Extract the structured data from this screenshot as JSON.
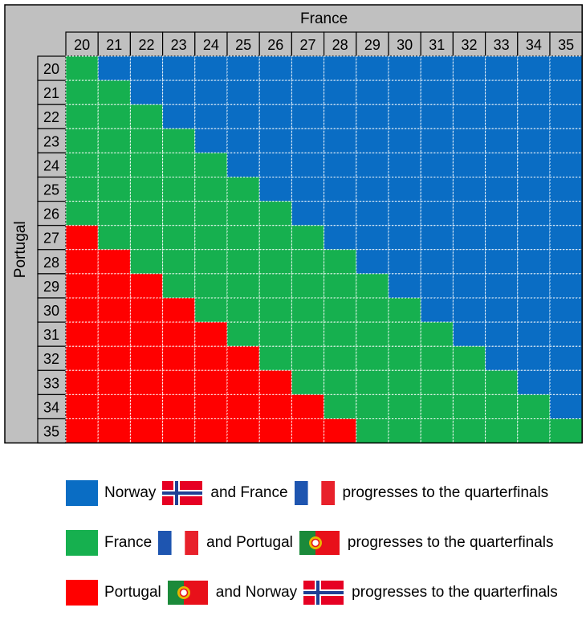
{
  "chart_data": {
    "type": "heatmap",
    "title": "",
    "xlabel": "France",
    "ylabel": "Portugal",
    "x_categories": [
      "20",
      "21",
      "22",
      "23",
      "24",
      "25",
      "26",
      "27",
      "28",
      "29",
      "30",
      "31",
      "32",
      "33",
      "34",
      "35"
    ],
    "y_categories": [
      "20",
      "21",
      "22",
      "23",
      "24",
      "25",
      "26",
      "27",
      "28",
      "29",
      "30",
      "31",
      "32",
      "33",
      "34",
      "35"
    ],
    "cell_rule": "blue when France > Portugal; green when Portugal - 7 < France <= Portugal; red when France <= Portugal - 7 (i.e. Portugal - France >= 7)",
    "red_threshold": 7,
    "categories": [
      {
        "key": "B",
        "color": "#0a6dc4"
      },
      {
        "key": "G",
        "color": "#16b04f"
      },
      {
        "key": "R",
        "color": "#ff0000"
      }
    ]
  },
  "legend": [
    {
      "key": "B",
      "color": "#0a6dc4",
      "parts": [
        "Norway",
        "and France",
        "progresses to the quarterfinals"
      ],
      "flags": [
        "norway-flag",
        "france-flag"
      ]
    },
    {
      "key": "G",
      "color": "#16b04f",
      "parts": [
        "France",
        "and Portugal",
        "progresses to the quarterfinals"
      ],
      "flags": [
        "france-flag",
        "portugal-flag"
      ]
    },
    {
      "key": "R",
      "color": "#ff0000",
      "parts": [
        "Portugal",
        "and Norway",
        "progresses to the quarterfinals"
      ],
      "flags": [
        "portugal-flag",
        "norway-flag"
      ]
    }
  ],
  "colors": {
    "header_bg": "#c0c0c0",
    "border": "#000000",
    "gridline": "#ffffff",
    "norway_red": "#e60023",
    "norway_blue": "#1f3f94",
    "france_blue": "#1e55b0",
    "france_red": "#e8212b",
    "portugal_green": "#1b8a3a",
    "portugal_red": "#e8101a",
    "emblem": "#e8b800"
  }
}
